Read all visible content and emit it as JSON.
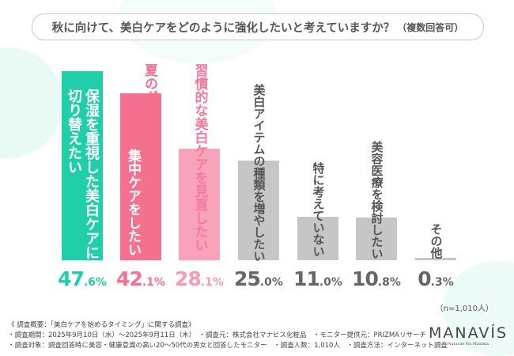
{
  "header": {
    "title": "秋に向けて、美白ケアをどのように強化したいと考えていますか？",
    "subtitle": "（複数回答可）"
  },
  "chart_data": {
    "type": "bar",
    "categories": [
      [
        "保湿を重視した美白ケアに",
        "切り替えたい"
      ],
      [
        "夏のダメージをリセットできる",
        "集中ケアをしたい"
      ],
      [
        "習慣的な美白ケアを見直したい"
      ],
      [
        "美白アイテムの種類を増やしたい"
      ],
      [
        "特に考えていない"
      ],
      [
        "美容医療を検討したい"
      ],
      [
        "その他"
      ]
    ],
    "values": [
      47.6,
      42.1,
      28.1,
      25.0,
      11.0,
      10.8,
      0.3
    ],
    "value_labels": [
      [
        "47",
        ".6%"
      ],
      [
        "42",
        ".1%"
      ],
      [
        "28",
        ".1%"
      ],
      [
        "25",
        ".0%"
      ],
      [
        "11",
        ".0%"
      ],
      [
        "10",
        ".8%"
      ],
      [
        "0",
        ".3%"
      ]
    ],
    "colors": [
      "#20cfa8",
      "#f56f8f",
      "#f9a3bb",
      "#c6c6c6",
      "#c6c6c6",
      "#c6c6c6",
      "#c6c6c6"
    ],
    "value_colors": [
      "#20cfa8",
      "#f56f8f",
      "#f79ab4",
      "#666666",
      "#666666",
      "#666666",
      "#666666"
    ],
    "unit": "%",
    "ylim": [
      0,
      50
    ],
    "grid": false,
    "sample": "（n=1,010人）"
  },
  "footer": {
    "line1": "《 調査概要：「美白ケアを始めるタイミング」に関する調査》",
    "line2": "・調査期間：2025年9月10日（水）～2025年9月11日（木）　・調査元：株式会社マナビス化粧品　・モニター提供元：PRIZMAリサーチ",
    "line3": "・調査対象：調査回答時に美容・健康意識の高い20～50代の男女と回答したモニター　・調査人数：1,010人　・調査方法：インターネット調査"
  },
  "logo": {
    "name": "MANAVÍS",
    "tagline": "Naturae Vis Maxima"
  }
}
